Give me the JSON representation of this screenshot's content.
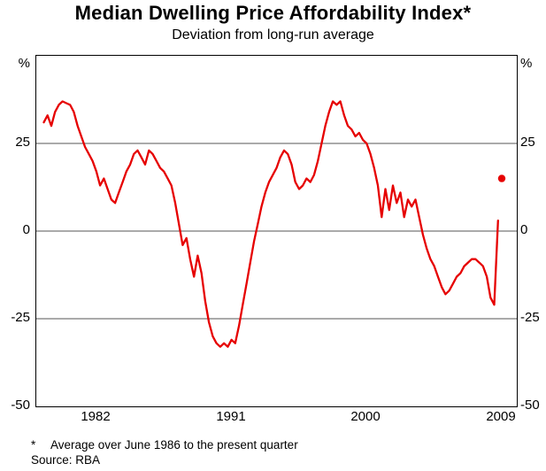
{
  "page": {
    "title": "Median Dwelling Price Affordability Index*",
    "subtitle": "Deviation from long-run average",
    "footnote_marker": "*",
    "footnote_text": "Average over June 1986 to the present quarter",
    "source": "Source: RBA"
  },
  "chart_data": {
    "type": "line",
    "title": "Median Dwelling Price Affordability Index*",
    "subtitle": "Deviation from long-run average",
    "unit": "%",
    "ylim": [
      -50,
      50
    ],
    "yticks": [
      25,
      0,
      -25,
      -50
    ],
    "gridlines": [
      25,
      0,
      -25
    ],
    "xlim": [
      1978,
      2010
    ],
    "xticks": [
      1982,
      1991,
      2000,
      2009
    ],
    "line_color": "#e60000",
    "grid_color": "#555555",
    "frame_color": "#000000",
    "series": [
      {
        "points": [
          [
            1978.5,
            31
          ],
          [
            1978.75,
            33
          ],
          [
            1979.0,
            30
          ],
          [
            1979.25,
            34
          ],
          [
            1979.5,
            36
          ],
          [
            1979.75,
            37
          ],
          [
            1980.0,
            36.5
          ],
          [
            1980.25,
            36
          ],
          [
            1980.5,
            34
          ],
          [
            1980.75,
            30
          ],
          [
            1981.0,
            27
          ],
          [
            1981.25,
            24
          ],
          [
            1981.5,
            22
          ],
          [
            1981.75,
            20
          ],
          [
            1982.0,
            17
          ],
          [
            1982.25,
            13
          ],
          [
            1982.5,
            15
          ],
          [
            1982.75,
            12
          ],
          [
            1983.0,
            9
          ],
          [
            1983.25,
            8
          ],
          [
            1983.5,
            11
          ],
          [
            1983.75,
            14
          ],
          [
            1984.0,
            17
          ],
          [
            1984.25,
            19
          ],
          [
            1984.5,
            22
          ],
          [
            1984.75,
            23
          ],
          [
            1985.0,
            21
          ],
          [
            1985.25,
            19
          ],
          [
            1985.5,
            23
          ],
          [
            1985.75,
            22
          ],
          [
            1986.0,
            20
          ],
          [
            1986.25,
            18
          ],
          [
            1986.5,
            17
          ],
          [
            1986.75,
            15
          ],
          [
            1987.0,
            13
          ],
          [
            1987.25,
            8
          ],
          [
            1987.5,
            2
          ],
          [
            1987.75,
            -4
          ],
          [
            1988.0,
            -2
          ],
          [
            1988.25,
            -8
          ],
          [
            1988.5,
            -13
          ],
          [
            1988.75,
            -7
          ],
          [
            1989.0,
            -12
          ],
          [
            1989.25,
            -20
          ],
          [
            1989.5,
            -26
          ],
          [
            1989.75,
            -30
          ],
          [
            1990.0,
            -32
          ],
          [
            1990.25,
            -33
          ],
          [
            1990.5,
            -32
          ],
          [
            1990.75,
            -33
          ],
          [
            1991.0,
            -31
          ],
          [
            1991.25,
            -32
          ],
          [
            1991.5,
            -27
          ],
          [
            1991.75,
            -21
          ],
          [
            1992.0,
            -15
          ],
          [
            1992.25,
            -9
          ],
          [
            1992.5,
            -3
          ],
          [
            1992.75,
            2
          ],
          [
            1993.0,
            7
          ],
          [
            1993.25,
            11
          ],
          [
            1993.5,
            14
          ],
          [
            1993.75,
            16
          ],
          [
            1994.0,
            18
          ],
          [
            1994.25,
            21
          ],
          [
            1994.5,
            23
          ],
          [
            1994.75,
            22
          ],
          [
            1995.0,
            19
          ],
          [
            1995.25,
            14
          ],
          [
            1995.5,
            12
          ],
          [
            1995.75,
            13
          ],
          [
            1996.0,
            15
          ],
          [
            1996.25,
            14
          ],
          [
            1996.5,
            16
          ],
          [
            1996.75,
            20
          ],
          [
            1997.0,
            25
          ],
          [
            1997.25,
            30
          ],
          [
            1997.5,
            34
          ],
          [
            1997.75,
            37
          ],
          [
            1998.0,
            36
          ],
          [
            1998.25,
            37
          ],
          [
            1998.5,
            33
          ],
          [
            1998.75,
            30
          ],
          [
            1999.0,
            29
          ],
          [
            1999.25,
            27
          ],
          [
            1999.5,
            28
          ],
          [
            1999.75,
            26
          ],
          [
            2000.0,
            25
          ],
          [
            2000.25,
            22
          ],
          [
            2000.5,
            18
          ],
          [
            2000.75,
            13
          ],
          [
            2001.0,
            4
          ],
          [
            2001.25,
            12
          ],
          [
            2001.5,
            6
          ],
          [
            2001.75,
            13
          ],
          [
            2002.0,
            8
          ],
          [
            2002.25,
            11
          ],
          [
            2002.5,
            4
          ],
          [
            2002.75,
            9
          ],
          [
            2003.0,
            7
          ],
          [
            2003.25,
            9
          ],
          [
            2003.5,
            4
          ],
          [
            2003.75,
            -1
          ],
          [
            2004.0,
            -5
          ],
          [
            2004.25,
            -8
          ],
          [
            2004.5,
            -10
          ],
          [
            2004.75,
            -13
          ],
          [
            2005.0,
            -16
          ],
          [
            2005.25,
            -18
          ],
          [
            2005.5,
            -17
          ],
          [
            2005.75,
            -15
          ],
          [
            2006.0,
            -13
          ],
          [
            2006.25,
            -12
          ],
          [
            2006.5,
            -10
          ],
          [
            2006.75,
            -9
          ],
          [
            2007.0,
            -8
          ],
          [
            2007.25,
            -8
          ],
          [
            2007.5,
            -9
          ],
          [
            2007.75,
            -10
          ],
          [
            2008.0,
            -13
          ],
          [
            2008.25,
            -19
          ],
          [
            2008.5,
            -21
          ],
          [
            2008.75,
            3
          ]
        ]
      }
    ],
    "marker_point": {
      "x": 2009.0,
      "y": 15
    }
  }
}
